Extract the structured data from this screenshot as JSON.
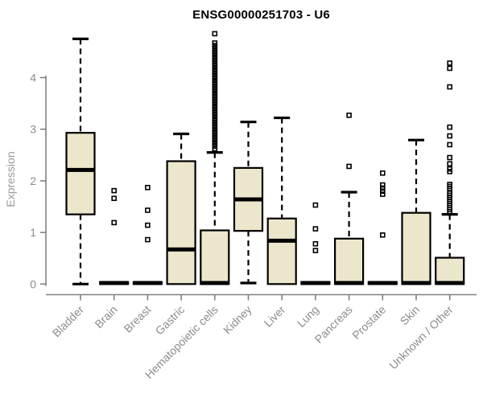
{
  "page": {
    "background_color": "#ffffff"
  },
  "chart_data": {
    "type": "boxplot",
    "title": "ENSG00000251703 - U6",
    "xlabel": "",
    "ylabel": "Expression",
    "ylim": [
      0,
      4.9
    ],
    "yticks": [
      0,
      1,
      2,
      3,
      4
    ],
    "grid": false,
    "legend": "none",
    "box_fill_color": "#ECE7CC",
    "box_line_color": "#000000",
    "axis_color": "#808080",
    "tick_label_color": "#8c8c8c",
    "title_color": "#000000",
    "categories": [
      "Bladder",
      "Brain",
      "Breast",
      "Gastric",
      "Hematopoietic cells",
      "Kidney",
      "Liver",
      "Lung",
      "Pancreas",
      "Prostate",
      "Skin",
      "Unknown / Other"
    ],
    "series": [
      {
        "category": "Bladder",
        "whisker_low": 0,
        "q1": 1.35,
        "median": 2.21,
        "q3": 2.93,
        "whisker_high": 4.75,
        "outliers": []
      },
      {
        "category": "Brain",
        "whisker_low": 0,
        "q1": 0,
        "median": 0.02,
        "q3": 0.04,
        "whisker_high": 0.04,
        "outliers": [
          1.81,
          1.66,
          1.19
        ]
      },
      {
        "category": "Breast",
        "whisker_low": 0,
        "q1": 0,
        "median": 0.02,
        "q3": 0.04,
        "whisker_high": 0.04,
        "outliers": [
          1.87,
          1.43,
          1.14,
          0.86
        ]
      },
      {
        "category": "Gastric",
        "whisker_low": 0,
        "q1": 0,
        "median": 0.67,
        "q3": 2.38,
        "whisker_high": 2.91,
        "outliers": []
      },
      {
        "category": "Hematopoietic cells",
        "whisker_low": 0,
        "q1": 0,
        "median": 0.02,
        "q3": 1.04,
        "whisker_high": 2.55,
        "outliers": [
          4.85,
          4.67,
          4.62,
          4.57,
          4.52,
          4.47,
          4.42,
          4.37,
          4.32,
          4.27,
          4.22,
          4.17,
          4.12,
          4.07,
          4.02,
          3.97,
          3.92,
          3.87,
          3.82,
          3.77,
          3.72,
          3.67,
          3.62,
          3.57,
          3.52,
          3.47,
          3.42,
          3.37,
          3.32,
          3.27,
          3.22,
          3.17,
          3.12,
          3.07,
          3.02,
          2.97,
          2.92,
          2.87,
          2.82,
          2.77,
          2.72,
          2.67,
          2.62
        ]
      },
      {
        "category": "Kidney",
        "whisker_low": 0.02,
        "q1": 1.03,
        "median": 1.64,
        "q3": 2.25,
        "whisker_high": 3.14,
        "outliers": []
      },
      {
        "category": "Liver",
        "whisker_low": 0,
        "q1": 0,
        "median": 0.84,
        "q3": 1.27,
        "whisker_high": 3.22,
        "outliers": []
      },
      {
        "category": "Lung",
        "whisker_low": 0,
        "q1": 0,
        "median": 0.02,
        "q3": 0.04,
        "whisker_high": 0.04,
        "outliers": [
          1.53,
          1.07,
          0.78,
          0.65
        ]
      },
      {
        "category": "Pancreas",
        "whisker_low": 0,
        "q1": 0,
        "median": 0.02,
        "q3": 0.88,
        "whisker_high": 1.78,
        "outliers": [
          3.27,
          2.28
        ]
      },
      {
        "category": "Prostate",
        "whisker_low": 0,
        "q1": 0,
        "median": 0.02,
        "q3": 0.04,
        "whisker_high": 0.04,
        "outliers": [
          2.15,
          1.92,
          1.86,
          1.8,
          1.74,
          0.95
        ]
      },
      {
        "category": "Skin",
        "whisker_low": 0,
        "q1": 0,
        "median": 0.02,
        "q3": 1.38,
        "whisker_high": 2.79,
        "outliers": []
      },
      {
        "category": "Unknown / Other",
        "whisker_low": 0,
        "q1": 0,
        "median": 0.02,
        "q3": 0.51,
        "whisker_high": 1.35,
        "outliers": [
          4.28,
          4.18,
          3.82,
          3.04,
          2.87,
          2.7,
          2.45,
          2.33,
          2.23,
          2.18,
          1.93,
          1.89,
          1.85,
          1.76,
          1.72,
          1.68,
          1.64,
          1.6,
          1.56,
          1.52,
          1.48,
          1.44,
          1.4
        ]
      }
    ]
  }
}
